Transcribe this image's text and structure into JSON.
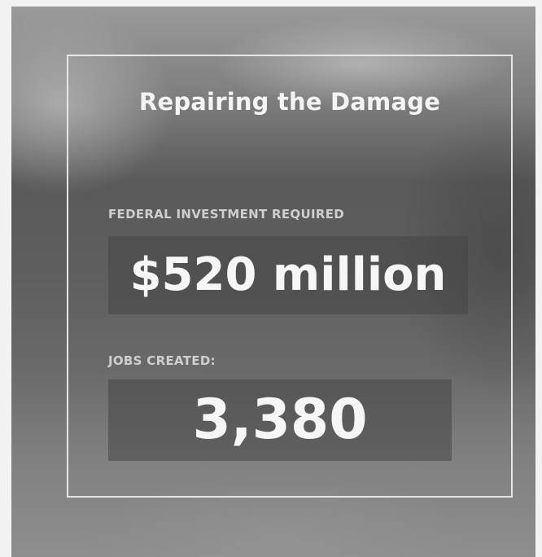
{
  "card": {
    "title": "Repairing the Damage",
    "stats": [
      {
        "label": "FEDERAL INVESTMENT REQUIRED",
        "value": "$520 million"
      },
      {
        "label": "JOBS CREATED:",
        "value": "3,380"
      }
    ]
  }
}
